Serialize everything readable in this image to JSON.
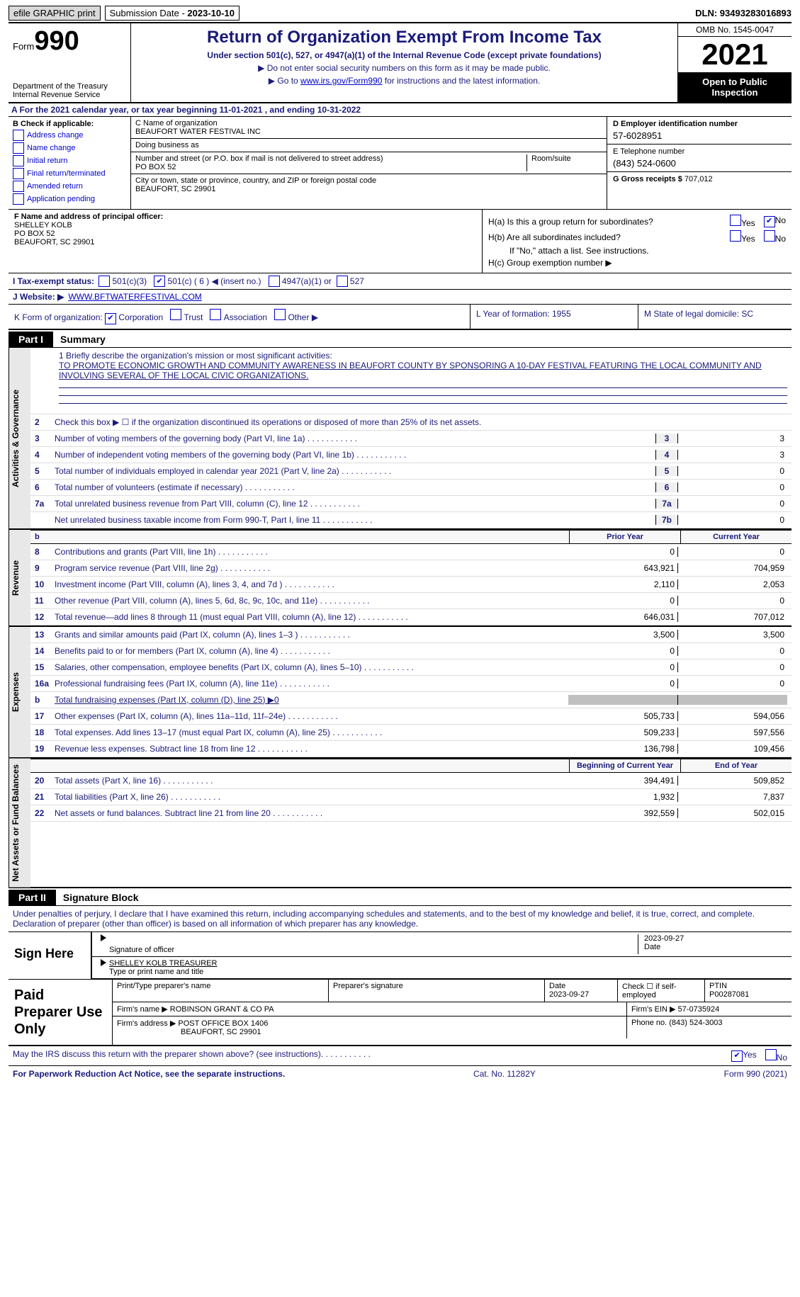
{
  "topbar": {
    "efile": "efile GRAPHIC print",
    "subdate_label": "Submission Date - ",
    "subdate": "2023-10-10",
    "dln": "DLN: 93493283016893"
  },
  "header": {
    "form_prefix": "Form",
    "form_no": "990",
    "dept": "Department of the Treasury",
    "irs": "Internal Revenue Service",
    "title": "Return of Organization Exempt From Income Tax",
    "subtitle": "Under section 501(c), 527, or 4947(a)(1) of the Internal Revenue Code (except private foundations)",
    "instr1": "▶ Do not enter social security numbers on this form as it may be made public.",
    "instr2_pre": "▶ Go to ",
    "instr2_link": "www.irs.gov/Form990",
    "instr2_post": " for instructions and the latest information.",
    "omb": "OMB No. 1545-0047",
    "year": "2021",
    "otp": "Open to Public Inspection"
  },
  "line_a": "A For the 2021 calendar year, or tax year beginning 11-01-2021    , and ending 10-31-2022",
  "col_b": {
    "label": "B Check if applicable:",
    "items": [
      "Address change",
      "Name change",
      "Initial return",
      "Final return/terminated",
      "Amended return",
      "Application pending"
    ]
  },
  "col_c": {
    "name_label": "C Name of organization",
    "name": "BEAUFORT WATER FESTIVAL INC",
    "dba_label": "Doing business as",
    "dba": "",
    "addr_label": "Number and street (or P.O. box if mail is not delivered to street address)",
    "addr": "PO BOX 52",
    "room_label": "Room/suite",
    "city_label": "City or town, state or province, country, and ZIP or foreign postal code",
    "city": "BEAUFORT, SC  29901"
  },
  "col_de": {
    "ein_label": "D Employer identification number",
    "ein": "57-6028951",
    "tel_label": "E Telephone number",
    "tel": "(843) 524-0600",
    "gross_label": "G Gross receipts $ ",
    "gross": "707,012"
  },
  "f": {
    "label": "F Name and address of principal officer:",
    "name": "SHELLEY KOLB",
    "addr": "PO BOX 52",
    "city": "BEAUFORT, SC  29901"
  },
  "h": {
    "a": "H(a)  Is this a group return for subordinates?",
    "b": "H(b)  Are all subordinates included?",
    "note": "If \"No,\" attach a list. See instructions.",
    "c": "H(c)  Group exemption number ▶",
    "yes": "Yes",
    "no": "No"
  },
  "i": {
    "label": "I   Tax-exempt status:",
    "opts": [
      "501(c)(3)",
      "501(c) ( 6 ) ◀ (insert no.)",
      "4947(a)(1) or",
      "527"
    ]
  },
  "j": {
    "label": "J   Website: ▶",
    "url": "WWW.BFTWATERFESTIVAL.COM"
  },
  "k": {
    "label": "K Form of organization:",
    "opts": [
      "Corporation",
      "Trust",
      "Association",
      "Other ▶"
    ]
  },
  "l": {
    "label": "L Year of formation: ",
    "val": "1955"
  },
  "m": {
    "label": "M State of legal domicile: ",
    "val": "SC"
  },
  "part1": {
    "pill": "Part I",
    "title": "Summary"
  },
  "vtabs": [
    "Activities & Governance",
    "Revenue",
    "Expenses",
    "Net Assets or Fund Balances"
  ],
  "mission": {
    "lead": "1   Briefly describe the organization's mission or most significant activities:",
    "text": "TO PROMOTE ECONOMIC GROWTH AND COMMUNITY AWARENESS IN BEAUFORT COUNTY BY SPONSORING A 10-DAY FESTIVAL FEATURING THE LOCAL COMMUNITY AND INVOLVING SEVERAL OF THE LOCAL CIVIC ORGANIZATIONS."
  },
  "lines_ag": [
    {
      "n": "2",
      "d": "Check this box ▶ ☐ if the organization discontinued its operations or disposed of more than 25% of its net assets."
    },
    {
      "n": "3",
      "d": "Number of voting members of the governing body (Part VI, line 1a)",
      "box": "3",
      "v": "3"
    },
    {
      "n": "4",
      "d": "Number of independent voting members of the governing body (Part VI, line 1b)",
      "box": "4",
      "v": "3"
    },
    {
      "n": "5",
      "d": "Total number of individuals employed in calendar year 2021 (Part V, line 2a)",
      "box": "5",
      "v": "0"
    },
    {
      "n": "6",
      "d": "Total number of volunteers (estimate if necessary)",
      "box": "6",
      "v": "0"
    },
    {
      "n": "7a",
      "d": "Total unrelated business revenue from Part VIII, column (C), line 12",
      "box": "7a",
      "v": "0"
    },
    {
      "n": "",
      "d": "Net unrelated business taxable income from Form 990-T, Part I, line 11",
      "box": "7b",
      "v": "0"
    }
  ],
  "col_hdr1": {
    "c1": "Prior Year",
    "c2": "Current Year"
  },
  "lines_rev": [
    {
      "n": "8",
      "d": "Contributions and grants (Part VIII, line 1h)",
      "v1": "0",
      "v2": "0"
    },
    {
      "n": "9",
      "d": "Program service revenue (Part VIII, line 2g)",
      "v1": "643,921",
      "v2": "704,959"
    },
    {
      "n": "10",
      "d": "Investment income (Part VIII, column (A), lines 3, 4, and 7d )",
      "v1": "2,110",
      "v2": "2,053"
    },
    {
      "n": "11",
      "d": "Other revenue (Part VIII, column (A), lines 5, 6d, 8c, 9c, 10c, and 11e)",
      "v1": "0",
      "v2": "0"
    },
    {
      "n": "12",
      "d": "Total revenue—add lines 8 through 11 (must equal Part VIII, column (A), line 12)",
      "v1": "646,031",
      "v2": "707,012"
    }
  ],
  "lines_exp": [
    {
      "n": "13",
      "d": "Grants and similar amounts paid (Part IX, column (A), lines 1–3 )",
      "v1": "3,500",
      "v2": "3,500"
    },
    {
      "n": "14",
      "d": "Benefits paid to or for members (Part IX, column (A), line 4)",
      "v1": "0",
      "v2": "0"
    },
    {
      "n": "15",
      "d": "Salaries, other compensation, employee benefits (Part IX, column (A), lines 5–10)",
      "v1": "0",
      "v2": "0"
    },
    {
      "n": "16a",
      "d": "Professional fundraising fees (Part IX, column (A), line 11e)",
      "v1": "0",
      "v2": "0"
    },
    {
      "n": "b",
      "d": "Total fundraising expenses (Part IX, column (D), line 25) ▶0",
      "grey": true
    },
    {
      "n": "17",
      "d": "Other expenses (Part IX, column (A), lines 11a–11d, 11f–24e)",
      "v1": "505,733",
      "v2": "594,056"
    },
    {
      "n": "18",
      "d": "Total expenses. Add lines 13–17 (must equal Part IX, column (A), line 25)",
      "v1": "509,233",
      "v2": "597,556"
    },
    {
      "n": "19",
      "d": "Revenue less expenses. Subtract line 18 from line 12",
      "v1": "136,798",
      "v2": "109,456"
    }
  ],
  "col_hdr2": {
    "c1": "Beginning of Current Year",
    "c2": "End of Year"
  },
  "lines_na": [
    {
      "n": "20",
      "d": "Total assets (Part X, line 16)",
      "v1": "394,491",
      "v2": "509,852"
    },
    {
      "n": "21",
      "d": "Total liabilities (Part X, line 26)",
      "v1": "1,932",
      "v2": "7,837"
    },
    {
      "n": "22",
      "d": "Net assets or fund balances. Subtract line 21 from line 20",
      "v1": "392,559",
      "v2": "502,015"
    }
  ],
  "part2": {
    "pill": "Part II",
    "title": "Signature Block"
  },
  "sig_text": "Under penalties of perjury, I declare that I have examined this return, including accompanying schedules and statements, and to the best of my knowledge and belief, it is true, correct, and complete. Declaration of preparer (other than officer) is based on all information of which preparer has any knowledge.",
  "sig": {
    "here": "Sign Here",
    "sig_label": "Signature of officer",
    "date_label": "Date",
    "date": "2023-09-27",
    "name": "SHELLEY KOLB  TREASURER",
    "name_label": "Type or print name and title"
  },
  "prep": {
    "left": "Paid Preparer Use Only",
    "r1": {
      "c1": "Print/Type preparer's name",
      "c2": "Preparer's signature",
      "c3_l": "Date",
      "c3": "2023-09-27",
      "c4": "Check ☐ if self-employed",
      "c5_l": "PTIN",
      "c5": "P00287081"
    },
    "r2": {
      "c1": "Firm's name     ▶",
      "c1v": "ROBINSON GRANT & CO PA",
      "c2": "Firm's EIN ▶",
      "c2v": "57-0735924"
    },
    "r3": {
      "c1": "Firm's address ▶",
      "c1v": "POST OFFICE BOX 1406",
      "c1v2": "BEAUFORT, SC  29901",
      "c2": "Phone no. ",
      "c2v": "(843) 524-3003"
    }
  },
  "may_irs": "May the IRS discuss this return with the preparer shown above? (see instructions)",
  "footer": {
    "left": "For Paperwork Reduction Act Notice, see the separate instructions.",
    "center": "Cat. No. 11282Y",
    "right": "Form 990 (2021)"
  }
}
